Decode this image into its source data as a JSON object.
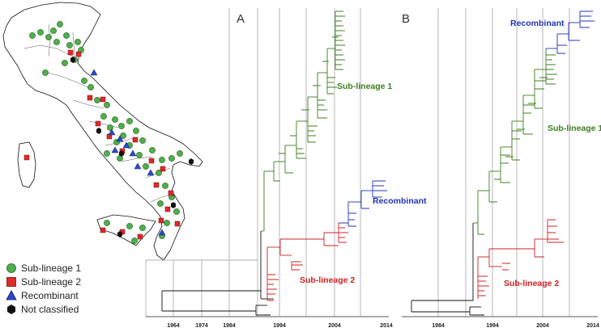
{
  "colors": {
    "sub_lineage_1": "#3f7d1f",
    "sub_lineage_2": "#cc2222",
    "recombinant": "#2233bb",
    "not_classified": "#111111",
    "grid": "#999999"
  },
  "map": {
    "legend": {
      "items": [
        {
          "label": "Sub-lineage 1",
          "shape": "circle",
          "color_key": "sub_lineage_1"
        },
        {
          "label": "Sub-lineage 2",
          "shape": "square",
          "color_key": "sub_lineage_2"
        },
        {
          "label": "Recombinant",
          "shape": "triangle",
          "color_key": "recombinant"
        },
        {
          "label": "Not classified",
          "shape": "hexagon",
          "color_key": "not_classified"
        }
      ]
    }
  },
  "tree_a": {
    "panel_label": "A",
    "axis_ticks": [
      "1964",
      "1974",
      "1984",
      "1994",
      "2004",
      "2014"
    ],
    "clades": {
      "sub_lineage_1": "Sub-lineage 1",
      "sub_lineage_2": "Sub-lineage 2",
      "recombinant": "Recombinant"
    }
  },
  "tree_b": {
    "panel_label": "B",
    "axis_ticks": [
      "1984",
      "1994",
      "2004",
      "2014"
    ],
    "clades": {
      "sub_lineage_1": "Sub-lineage 1",
      "sub_lineage_2": "Sub-lineage 2",
      "recombinant": "Recombinant"
    }
  }
}
